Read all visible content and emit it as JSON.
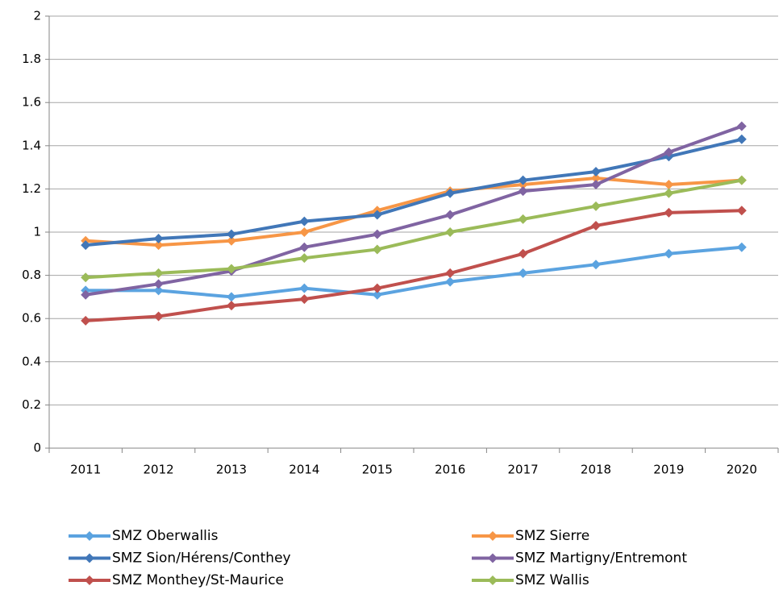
{
  "chart_data": {
    "type": "line",
    "categories": [
      "2011",
      "2012",
      "2013",
      "2014",
      "2015",
      "2016",
      "2017",
      "2018",
      "2019",
      "2020"
    ],
    "series": [
      {
        "name": "SMZ Oberwallis",
        "color": "#5ba3e0",
        "values": [
          0.73,
          0.73,
          0.7,
          0.74,
          0.71,
          0.77,
          0.81,
          0.85,
          0.9,
          0.93
        ]
      },
      {
        "name": "SMZ Sierre",
        "color": "#f79646",
        "values": [
          0.96,
          0.94,
          0.96,
          1.0,
          1.1,
          1.19,
          1.22,
          1.25,
          1.22,
          1.24
        ]
      },
      {
        "name": "SMZ Sion/Hérens/Conthey",
        "color": "#4177b8",
        "values": [
          0.94,
          0.97,
          0.99,
          1.05,
          1.08,
          1.18,
          1.24,
          1.28,
          1.35,
          1.43
        ]
      },
      {
        "name": "SMZ Martigny/Entremont",
        "color": "#8064a2",
        "values": [
          0.71,
          0.76,
          0.82,
          0.93,
          0.99,
          1.08,
          1.19,
          1.22,
          1.37,
          1.49
        ]
      },
      {
        "name": "SMZ Monthey/St-Maurice",
        "color": "#c0504d",
        "values": [
          0.59,
          0.61,
          0.66,
          0.69,
          0.74,
          0.81,
          0.9,
          1.03,
          1.09,
          1.1
        ]
      },
      {
        "name": "SMZ Wallis",
        "color": "#9bbb59",
        "values": [
          0.79,
          0.81,
          0.83,
          0.88,
          0.92,
          1.0,
          1.06,
          1.12,
          1.18,
          1.24
        ]
      }
    ],
    "ylim": [
      0,
      2
    ],
    "yticks": [
      0,
      0.2,
      0.4,
      0.6,
      0.8,
      1,
      1.2,
      1.4,
      1.6,
      1.8,
      2
    ],
    "grid": true
  }
}
